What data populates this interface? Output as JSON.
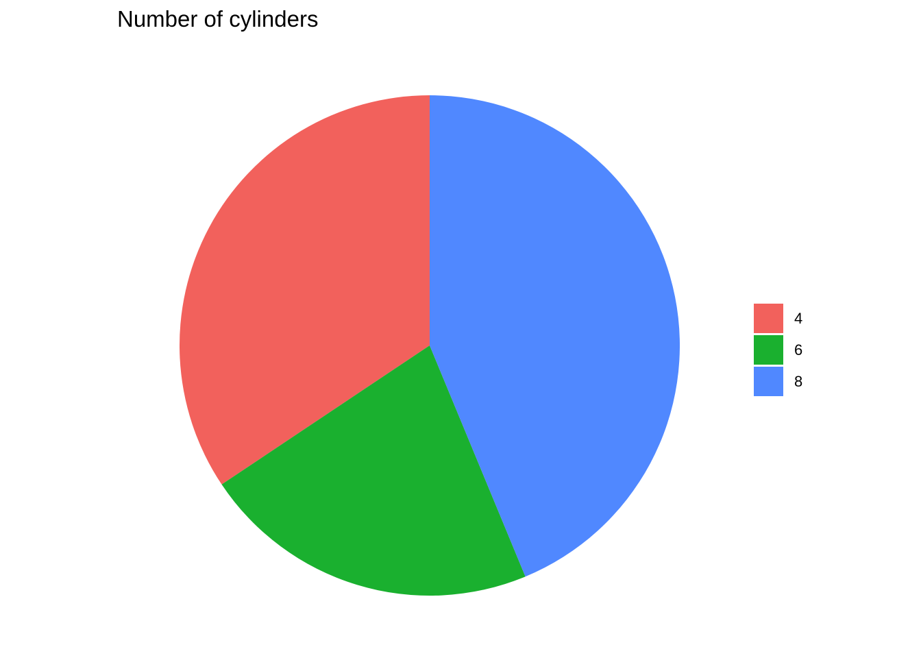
{
  "chart_data": {
    "type": "pie",
    "title": "Number of cylinders",
    "categories": [
      "4",
      "6",
      "8"
    ],
    "values": [
      11,
      7,
      14
    ],
    "colors": [
      "#F2615C",
      "#1AB02F",
      "#5088FF"
    ],
    "start_angle": "12 o'clock",
    "direction": "counterclockwise",
    "legend": {
      "placement": "right",
      "entries": [
        "4",
        "6",
        "8"
      ]
    }
  }
}
